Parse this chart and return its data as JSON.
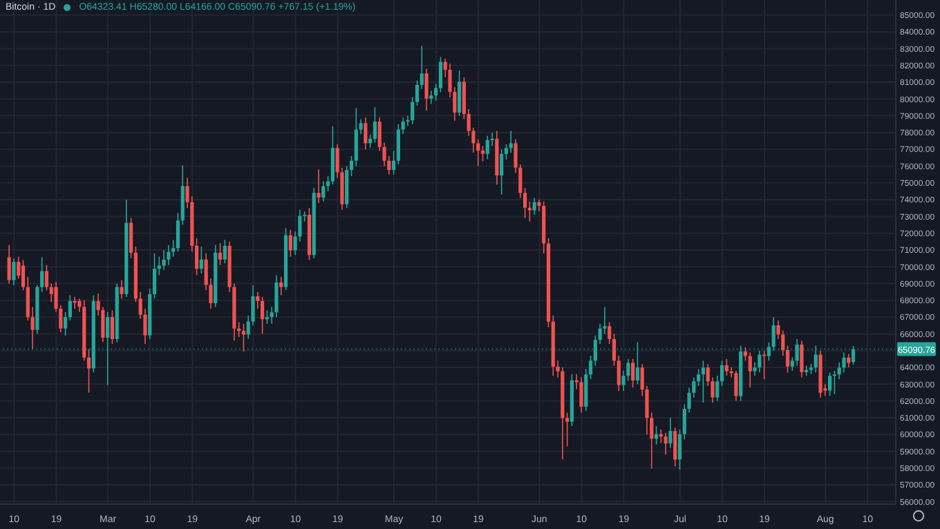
{
  "chart_data": {
    "type": "candlestick",
    "title": "Bitcoin · 1D",
    "subtitle": "O64323.41 H65280.00 L64166.00 C65090.76 +767.15 (+1.19%)",
    "x": [
      "--02-09",
      "--02-10",
      "--02-11",
      "--02-12",
      "--02-13",
      "--02-14",
      "--02-15",
      "--02-16",
      "--02-17",
      "--02-18",
      "--02-19",
      "--02-20",
      "--02-21",
      "--02-22",
      "--02-23",
      "--02-24",
      "--02-25",
      "--02-26",
      "--02-27",
      "--02-28",
      "--02-29",
      "--03-01",
      "--03-02",
      "--03-03",
      "--03-04",
      "--03-05",
      "--03-06",
      "--03-07",
      "--03-08",
      "--03-09",
      "--03-10",
      "--03-11",
      "--03-12",
      "--03-13",
      "--03-14",
      "--03-15",
      "--03-16",
      "--03-17",
      "--03-18",
      "--03-19",
      "--03-20",
      "--03-21",
      "--03-22",
      "--03-23",
      "--03-24",
      "--03-25",
      "--03-26",
      "--03-27",
      "--03-28",
      "--03-29",
      "--03-30",
      "--03-31",
      "--04-01",
      "--04-02",
      "--04-03",
      "--04-04",
      "--04-05",
      "--04-06",
      "--04-07",
      "--04-08",
      "--04-09",
      "--04-10",
      "--04-11",
      "--04-12",
      "--04-13",
      "--04-14",
      "--04-15",
      "--04-16",
      "--04-17",
      "--04-18",
      "--04-19",
      "--04-20",
      "--04-21",
      "--04-22",
      "--04-23",
      "--04-24",
      "--04-25",
      "--04-26",
      "--04-27",
      "--04-28",
      "--04-29",
      "--04-30",
      "--05-01",
      "--05-02",
      "--05-03",
      "--05-04",
      "--05-05",
      "--05-06",
      "--05-07",
      "--05-08",
      "--05-09",
      "--05-10",
      "--05-11",
      "--05-12",
      "--05-13",
      "--05-14",
      "--05-15",
      "--05-16",
      "--05-17",
      "--05-18",
      "--05-19",
      "--05-20",
      "--05-21",
      "--05-22",
      "--05-23",
      "--05-24",
      "--05-25",
      "--05-26",
      "--05-27",
      "--05-28",
      "--05-29",
      "--05-30",
      "--05-31",
      "--06-01",
      "--06-02",
      "--06-03",
      "--06-04",
      "--06-05",
      "--06-06",
      "--06-07",
      "--06-08",
      "--06-09",
      "--06-10",
      "--06-11",
      "--06-12",
      "--06-13",
      "--06-14",
      "--06-15",
      "--06-16",
      "--06-17",
      "--06-18",
      "--06-19",
      "--06-20",
      "--06-21",
      "--06-22",
      "--06-23",
      "--06-24",
      "--06-25",
      "--06-26",
      "--06-27",
      "--06-28",
      "--06-29",
      "--06-30",
      "--07-01",
      "--07-02",
      "--07-03",
      "--07-04",
      "--07-05",
      "--07-06",
      "--07-07",
      "--07-08",
      "--07-09",
      "--07-10",
      "--07-11",
      "--07-12",
      "--07-13",
      "--07-14",
      "--07-15",
      "--07-16",
      "--07-17",
      "--07-18",
      "--07-19",
      "--07-20",
      "--07-21",
      "--07-22",
      "--07-23",
      "--07-24",
      "--07-25",
      "--07-26",
      "--07-27",
      "--07-28",
      "--07-29",
      "--07-30",
      "--07-31",
      "--08-01",
      "--08-02",
      "--08-03",
      "--08-04",
      "--08-05",
      "--08-06",
      "--08-07"
    ],
    "ohlc": [
      [
        70570,
        71300,
        69000,
        69200
      ],
      [
        69200,
        70500,
        68900,
        70290
      ],
      [
        70290,
        70600,
        69300,
        69470
      ],
      [
        70070,
        70400,
        68600,
        68790
      ],
      [
        68790,
        69400,
        66800,
        67000
      ],
      [
        67000,
        67600,
        65100,
        66240
      ],
      [
        66240,
        68900,
        66000,
        68790
      ],
      [
        68790,
        70570,
        68500,
        69740
      ],
      [
        69740,
        70100,
        68600,
        68790
      ],
      [
        68790,
        69000,
        67900,
        68370
      ],
      [
        68790,
        69100,
        67300,
        67500
      ],
      [
        67500,
        67700,
        66100,
        66320
      ],
      [
        66320,
        67300,
        65900,
        67000
      ],
      [
        67000,
        68300,
        66800,
        67960
      ],
      [
        67960,
        68200,
        67500,
        67850
      ],
      [
        67960,
        68100,
        67300,
        67610
      ],
      [
        67610,
        68000,
        64400,
        64590
      ],
      [
        64590,
        65100,
        62500,
        63940
      ],
      [
        63940,
        68300,
        63700,
        67960
      ],
      [
        67960,
        68400,
        67100,
        67420
      ],
      [
        67420,
        67600,
        65500,
        65770
      ],
      [
        65770,
        67300,
        62950,
        67000
      ],
      [
        67000,
        67400,
        65400,
        65690
      ],
      [
        65690,
        69000,
        65500,
        68790
      ],
      [
        68790,
        69200,
        68100,
        68370
      ],
      [
        68370,
        73990,
        68200,
        72620
      ],
      [
        72620,
        72900,
        70500,
        70840
      ],
      [
        70840,
        71200,
        67900,
        68100
      ],
      [
        68100,
        68500,
        66900,
        67140
      ],
      [
        67140,
        67500,
        65400,
        65910
      ],
      [
        65910,
        68700,
        65700,
        68370
      ],
      [
        68370,
        70800,
        68100,
        69880
      ],
      [
        69880,
        70600,
        69500,
        70070
      ],
      [
        70070,
        71000,
        69800,
        70430
      ],
      [
        70430,
        71300,
        70100,
        70890
      ],
      [
        70890,
        71600,
        70600,
        71110
      ],
      [
        71110,
        73200,
        70900,
        72760
      ],
      [
        72760,
        76040,
        72500,
        74810
      ],
      [
        74810,
        75300,
        73500,
        73850
      ],
      [
        73850,
        74200,
        70900,
        71250
      ],
      [
        71250,
        71700,
        69500,
        69880
      ],
      [
        69880,
        71200,
        69600,
        70430
      ],
      [
        70430,
        70800,
        68600,
        68920
      ],
      [
        68920,
        69300,
        67500,
        67830
      ],
      [
        67830,
        71300,
        67600,
        70840
      ],
      [
        70840,
        71400,
        70100,
        70430
      ],
      [
        70430,
        71600,
        70200,
        71250
      ],
      [
        71250,
        71500,
        68500,
        68790
      ],
      [
        68790,
        69000,
        65600,
        66320
      ],
      [
        66320,
        66700,
        65800,
        66180
      ],
      [
        66180,
        66600,
        64950,
        65960
      ],
      [
        65960,
        67100,
        65700,
        66730
      ],
      [
        66730,
        68900,
        66500,
        68240
      ],
      [
        68240,
        68500,
        67500,
        67960
      ],
      [
        67960,
        68200,
        66000,
        66870
      ],
      [
        66870,
        67400,
        66600,
        67000
      ],
      [
        67000,
        67600,
        66600,
        67280
      ],
      [
        67280,
        69500,
        67000,
        69060
      ],
      [
        69060,
        69400,
        68300,
        68790
      ],
      [
        68790,
        72300,
        68600,
        71880
      ],
      [
        71880,
        72200,
        70600,
        70980
      ],
      [
        70980,
        72100,
        70700,
        71800
      ],
      [
        71800,
        73400,
        71500,
        73030
      ],
      [
        73030,
        73300,
        72700,
        73100
      ],
      [
        73100,
        73500,
        70400,
        70700
      ],
      [
        70700,
        74700,
        70500,
        74400
      ],
      [
        74400,
        75800,
        73800,
        74130
      ],
      [
        74130,
        75100,
        73900,
        74810
      ],
      [
        74810,
        75400,
        74500,
        75090
      ],
      [
        75090,
        78370,
        74900,
        77080
      ],
      [
        77080,
        77300,
        75300,
        75630
      ],
      [
        75630,
        75900,
        73400,
        73720
      ],
      [
        73720,
        76000,
        73500,
        75770
      ],
      [
        75770,
        76600,
        75400,
        76320
      ],
      [
        76320,
        79470,
        76000,
        78180
      ],
      [
        78180,
        78800,
        77900,
        78560
      ],
      [
        78560,
        78900,
        77000,
        77360
      ],
      [
        77360,
        77900,
        77100,
        77630
      ],
      [
        77630,
        79500,
        77400,
        78650
      ],
      [
        78650,
        78900,
        76900,
        77140
      ],
      [
        77140,
        77400,
        76000,
        76320
      ],
      [
        76320,
        76600,
        75500,
        75770
      ],
      [
        75770,
        76900,
        75500,
        76320
      ],
      [
        76320,
        78500,
        76100,
        78180
      ],
      [
        78180,
        78900,
        77900,
        78650
      ],
      [
        78650,
        79000,
        78400,
        78730
      ],
      [
        78730,
        80100,
        78500,
        79820
      ],
      [
        79820,
        81100,
        79600,
        80840
      ],
      [
        80840,
        83170,
        80600,
        81520
      ],
      [
        81520,
        81800,
        79300,
        80020
      ],
      [
        80020,
        80500,
        79700,
        80210
      ],
      [
        80210,
        80900,
        79900,
        80650
      ],
      [
        80650,
        82500,
        80400,
        82210
      ],
      [
        82210,
        82400,
        81300,
        81740
      ],
      [
        81740,
        82100,
        80100,
        80430
      ],
      [
        80430,
        80700,
        78700,
        79190
      ],
      [
        79190,
        81700,
        79000,
        81030
      ],
      [
        81030,
        81300,
        78800,
        79110
      ],
      [
        79110,
        79400,
        77800,
        78100
      ],
      [
        78100,
        78300,
        76800,
        77360
      ],
      [
        77360,
        77600,
        76000,
        76920
      ],
      [
        76920,
        77200,
        76300,
        76730
      ],
      [
        76730,
        77800,
        76400,
        77550
      ],
      [
        77550,
        78000,
        77200,
        77630
      ],
      [
        77630,
        78100,
        74900,
        75440
      ],
      [
        75440,
        77000,
        74300,
        76730
      ],
      [
        76730,
        77300,
        76400,
        77080
      ],
      [
        77080,
        78100,
        76800,
        77360
      ],
      [
        77360,
        77600,
        75600,
        75910
      ],
      [
        75910,
        76100,
        74100,
        74400
      ],
      [
        74400,
        74700,
        72900,
        73520
      ],
      [
        73520,
        73900,
        72700,
        73360
      ],
      [
        73360,
        74100,
        73100,
        73850
      ],
      [
        73850,
        74000,
        73300,
        73630
      ],
      [
        73630,
        73900,
        70800,
        71390
      ],
      [
        71390,
        71700,
        66400,
        66730
      ],
      [
        66730,
        67100,
        63500,
        64050
      ],
      [
        64050,
        64400,
        63400,
        63770
      ],
      [
        63770,
        64000,
        58520,
        60980
      ],
      [
        60980,
        61300,
        59300,
        60760
      ],
      [
        60760,
        63600,
        60500,
        63230
      ],
      [
        63230,
        63600,
        62700,
        63120
      ],
      [
        63120,
        63400,
        61300,
        61660
      ],
      [
        61660,
        63900,
        61400,
        63580
      ],
      [
        63580,
        64700,
        63300,
        64400
      ],
      [
        64400,
        65900,
        64100,
        65640
      ],
      [
        65640,
        66600,
        65400,
        66320
      ],
      [
        66320,
        67600,
        66000,
        66460
      ],
      [
        66460,
        66700,
        65400,
        65690
      ],
      [
        65690,
        66000,
        64100,
        64400
      ],
      [
        64400,
        64700,
        62600,
        62950
      ],
      [
        62950,
        63800,
        62600,
        63500
      ],
      [
        63500,
        64500,
        63200,
        64270
      ],
      [
        64270,
        64500,
        62800,
        63220
      ],
      [
        63220,
        65500,
        63000,
        63990
      ],
      [
        63990,
        64200,
        62300,
        62680
      ],
      [
        62680,
        62900,
        60000,
        60980
      ],
      [
        60980,
        61300,
        57970,
        59750
      ],
      [
        59750,
        60500,
        59400,
        60020
      ],
      [
        60020,
        60300,
        59500,
        59880
      ],
      [
        59880,
        60100,
        58800,
        59470
      ],
      [
        59470,
        61000,
        59200,
        60210
      ],
      [
        60210,
        60400,
        58100,
        58510
      ],
      [
        58510,
        60300,
        57900,
        60020
      ],
      [
        60020,
        61800,
        59700,
        61530
      ],
      [
        61530,
        62800,
        61300,
        62490
      ],
      [
        62490,
        63400,
        62200,
        63170
      ],
      [
        63170,
        63900,
        62900,
        63580
      ],
      [
        63580,
        64400,
        61900,
        63990
      ],
      [
        63990,
        64200,
        62900,
        63170
      ],
      [
        63170,
        63400,
        61900,
        62210
      ],
      [
        62210,
        63500,
        62000,
        63170
      ],
      [
        63170,
        64400,
        62900,
        64130
      ],
      [
        64130,
        64500,
        63500,
        63770
      ],
      [
        63770,
        64000,
        63400,
        63660
      ],
      [
        63660,
        63800,
        62000,
        62290
      ],
      [
        62290,
        65300,
        62000,
        64950
      ],
      [
        64950,
        65200,
        64400,
        64680
      ],
      [
        64680,
        64900,
        62800,
        63770
      ],
      [
        63770,
        64300,
        63500,
        63990
      ],
      [
        63990,
        65000,
        63700,
        64760
      ],
      [
        64760,
        65000,
        63300,
        64680
      ],
      [
        64680,
        65500,
        64400,
        65220
      ],
      [
        65220,
        67000,
        65000,
        66510
      ],
      [
        66510,
        66800,
        65700,
        65960
      ],
      [
        65960,
        66200,
        64700,
        65030
      ],
      [
        65030,
        65300,
        63700,
        64050
      ],
      [
        64050,
        64600,
        63800,
        64400
      ],
      [
        64400,
        65700,
        64100,
        65360
      ],
      [
        65360,
        65600,
        63400,
        63720
      ],
      [
        63720,
        64100,
        63500,
        63850
      ],
      [
        63850,
        64200,
        63600,
        63990
      ],
      [
        63990,
        65300,
        63700,
        64760
      ],
      [
        64760,
        65000,
        62200,
        62490
      ],
      [
        62750,
        63000,
        62300,
        62620
      ],
      [
        62620,
        63700,
        62300,
        63500
      ],
      [
        63500,
        63800,
        62400,
        63580
      ],
      [
        63580,
        64300,
        63300,
        63990
      ],
      [
        63990,
        64900,
        63700,
        64590
      ],
      [
        64590,
        64800,
        64000,
        64270
      ],
      [
        64323.41,
        65280.0,
        64166.0,
        65090.76
      ]
    ],
    "xlim": [
      "--02-07",
      "--08-16"
    ],
    "xticks": [
      {
        "value": "--02-10",
        "label": "10"
      },
      {
        "value": "--02-19",
        "label": "19"
      },
      {
        "value": "--03-01",
        "label": "Mar"
      },
      {
        "value": "--03-10",
        "label": "10"
      },
      {
        "value": "--03-19",
        "label": "19"
      },
      {
        "value": "--04-01",
        "label": "Apr"
      },
      {
        "value": "--04-10",
        "label": "10"
      },
      {
        "value": "--04-19",
        "label": "19"
      },
      {
        "value": "--05-01",
        "label": "May"
      },
      {
        "value": "--05-10",
        "label": "10"
      },
      {
        "value": "--05-19",
        "label": "19"
      },
      {
        "value": "--06-01",
        "label": "Jun"
      },
      {
        "value": "--06-10",
        "label": "10"
      },
      {
        "value": "--06-19",
        "label": "19"
      },
      {
        "value": "--07-01",
        "label": "Jul"
      },
      {
        "value": "--07-10",
        "label": "10"
      },
      {
        "value": "--07-19",
        "label": "19"
      },
      {
        "value": "--08-01",
        "label": "Aug"
      },
      {
        "value": "--08-10",
        "label": "10"
      }
    ],
    "ylim": [
      55850,
      85900
    ],
    "yticks": [
      {
        "value": 56000,
        "label": "56000.00"
      },
      {
        "value": 57000,
        "label": "57000.00"
      },
      {
        "value": 58000,
        "label": "58000.00"
      },
      {
        "value": 59000,
        "label": "59000.00"
      },
      {
        "value": 60000,
        "label": "60000.00"
      },
      {
        "value": 61000,
        "label": "61000.00"
      },
      {
        "value": 62000,
        "label": "62000.00"
      },
      {
        "value": 63000,
        "label": "63000.00"
      },
      {
        "value": 64000,
        "label": "64000.00"
      },
      {
        "value": 65000,
        "label": null
      },
      {
        "value": 66000,
        "label": "66000.00"
      },
      {
        "value": 67000,
        "label": "67000.00"
      },
      {
        "value": 68000,
        "label": "68000.00"
      },
      {
        "value": 69000,
        "label": "69000.00"
      },
      {
        "value": 70000,
        "label": "70000.00"
      },
      {
        "value": 71000,
        "label": "71000.00"
      },
      {
        "value": 72000,
        "label": "72000.00"
      },
      {
        "value": 73000,
        "label": "73000.00"
      },
      {
        "value": 74000,
        "label": "74000.00"
      },
      {
        "value": 75000,
        "label": "75000.00"
      },
      {
        "value": 76000,
        "label": "76000.00"
      },
      {
        "value": 77000,
        "label": "77000.00"
      },
      {
        "value": 78000,
        "label": "78000.00"
      },
      {
        "value": 79000,
        "label": "79000.00"
      },
      {
        "value": 80000,
        "label": "80000.00"
      },
      {
        "value": 81000,
        "label": "81000.00"
      },
      {
        "value": 82000,
        "label": "82000.00"
      },
      {
        "value": 83000,
        "label": "83000.00"
      },
      {
        "value": 84000,
        "label": "84000.00"
      },
      {
        "value": 85000,
        "label": "85000.00"
      }
    ],
    "ref_lines": [
      {
        "axis": "y",
        "value": 65090.76,
        "label": "65090.76",
        "color": "#26a69a",
        "line_style": "dotted"
      }
    ],
    "grid": true
  }
}
